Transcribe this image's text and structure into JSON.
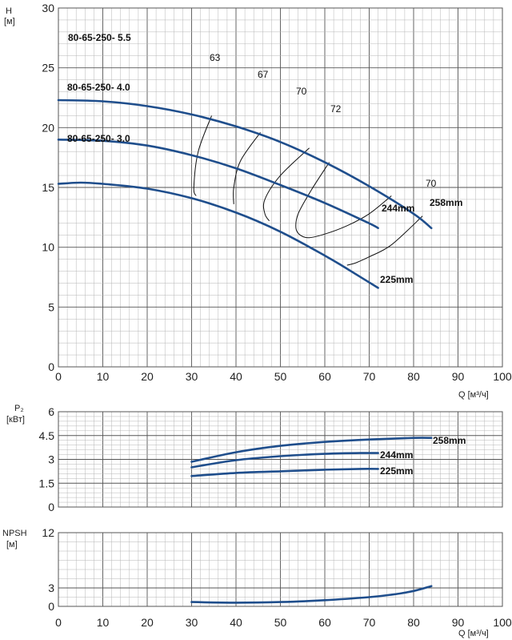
{
  "chart_data": [
    {
      "type": "line",
      "ylabel": "H",
      "yunit": "[м]",
      "xlabel": "Q [м³/ч]",
      "xlim": [
        0,
        100
      ],
      "ylim": [
        0,
        30
      ],
      "xticks": [
        "0",
        "10",
        "20",
        "30",
        "40",
        "50",
        "60",
        "70",
        "80",
        "90",
        "100"
      ],
      "yticks": [
        "0",
        "5",
        "10",
        "15",
        "20",
        "25",
        "30"
      ],
      "grid": true,
      "series": [
        {
          "name": "80-65-250- 5.5",
          "end_label": "258mm",
          "x": [
            0,
            10,
            20,
            30,
            40,
            50,
            60,
            70,
            80,
            84
          ],
          "y": [
            22.3,
            22.2,
            21.8,
            21.1,
            20.1,
            18.8,
            17.1,
            15.1,
            12.8,
            11.6
          ]
        },
        {
          "name": "80-65-250- 4.0",
          "end_label": "244mm",
          "x": [
            0,
            10,
            20,
            30,
            40,
            50,
            60,
            70,
            72
          ],
          "y": [
            19.0,
            18.9,
            18.5,
            17.7,
            16.6,
            15.2,
            13.7,
            12.0,
            11.6
          ]
        },
        {
          "name": "80-65-250- 3.0",
          "end_label": "225mm",
          "x": [
            0,
            5,
            10,
            20,
            30,
            40,
            50,
            60,
            65,
            72
          ],
          "y": [
            15.3,
            15.4,
            15.3,
            14.9,
            14.1,
            12.9,
            11.3,
            9.3,
            8.2,
            6.6
          ]
        }
      ],
      "efficiency": [
        {
          "label": "63",
          "x": [
            34.5,
            31.5,
            30.5,
            31
          ],
          "y": [
            21.0,
            18.0,
            15.0,
            14.3
          ]
        },
        {
          "label": "67",
          "x": [
            45.5,
            41,
            39.5,
            39.5
          ],
          "y": [
            19.6,
            17.2,
            15.0,
            13.6
          ]
        },
        {
          "label": "70",
          "x": [
            56.5,
            50,
            46.5,
            46.5,
            47.5
          ],
          "y": [
            18.3,
            16.0,
            14.0,
            12.8,
            12.2
          ]
        },
        {
          "label": "72",
          "x": [
            61,
            57,
            54,
            53.5,
            54.5,
            56.5,
            60,
            65,
            70,
            75
          ],
          "y": [
            17.1,
            14.8,
            12.8,
            11.6,
            11.0,
            10.8,
            11.1,
            11.8,
            12.8,
            14.3
          ]
        },
        {
          "label": "70",
          "x": [
            65,
            67,
            70,
            75,
            82
          ],
          "y": [
            8.5,
            8.7,
            9.2,
            10.2,
            12.6
          ]
        }
      ]
    },
    {
      "type": "line",
      "ylabel": "P₂",
      "yunit": "[кВт]",
      "xlim": [
        0,
        100
      ],
      "ylim": [
        0,
        6
      ],
      "yticks": [
        "0",
        "1.5",
        "3",
        "4.5",
        "6"
      ],
      "grid": true,
      "series": [
        {
          "name": "258mm",
          "x": [
            30,
            40,
            50,
            60,
            70,
            80,
            84
          ],
          "y": [
            2.85,
            3.45,
            3.85,
            4.1,
            4.25,
            4.35,
            4.35
          ]
        },
        {
          "name": "244mm",
          "x": [
            30,
            40,
            50,
            60,
            68,
            72
          ],
          "y": [
            2.5,
            2.95,
            3.2,
            3.35,
            3.4,
            3.4
          ]
        },
        {
          "name": "225mm",
          "x": [
            30,
            40,
            50,
            60,
            68,
            72
          ],
          "y": [
            1.95,
            2.15,
            2.25,
            2.35,
            2.4,
            2.4
          ]
        }
      ]
    },
    {
      "type": "line",
      "ylabel": "NPSH",
      "yunit": "[м]",
      "xlabel": "Q [м³/ч]",
      "xlim": [
        0,
        100
      ],
      "ylim": [
        0,
        12
      ],
      "xticks": [
        "0",
        "10",
        "20",
        "30",
        "40",
        "50",
        "60",
        "70",
        "80",
        "90",
        "100"
      ],
      "yticks": [
        "0",
        "3",
        "12"
      ],
      "grid": true,
      "series": [
        {
          "x": [
            30,
            40,
            50,
            60,
            70,
            75,
            80,
            84
          ],
          "y": [
            0.7,
            0.6,
            0.7,
            1.0,
            1.5,
            1.9,
            2.5,
            3.3
          ]
        }
      ]
    }
  ],
  "style": {
    "curve_color": "#1f4e8c",
    "efficiency_color": "#111111",
    "grid_major": "#555555",
    "grid_minor": "#b5b5b5"
  }
}
